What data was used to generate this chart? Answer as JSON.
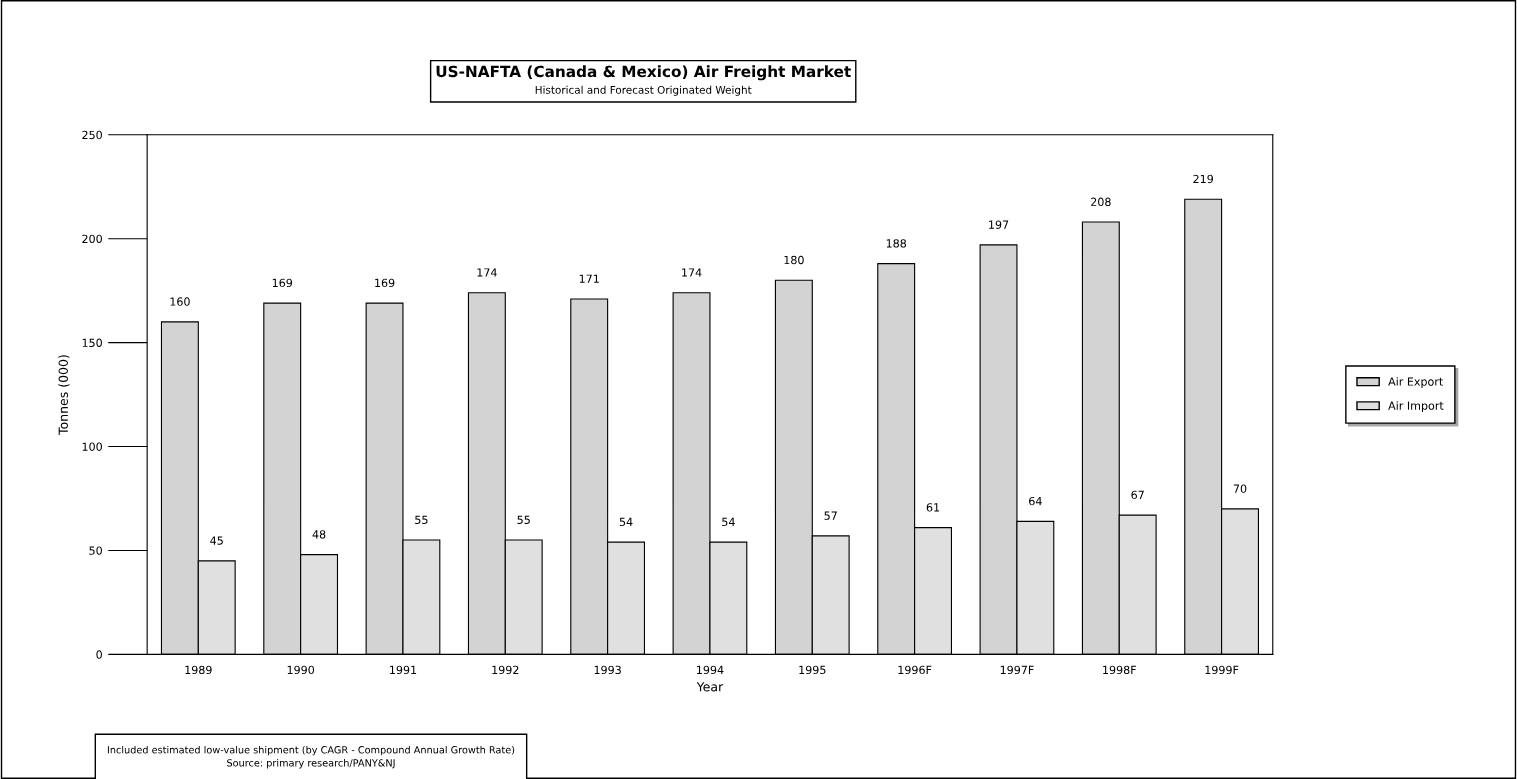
{
  "chart_data": {
    "type": "bar",
    "title": "US-NAFTA (Canada & Mexico) Air Freight Market",
    "subtitle": "Historical and Forecast Originated Weight",
    "xlabel": "Year",
    "ylabel": "Tonnes (000)",
    "categories": [
      "1989",
      "1990",
      "1991",
      "1992",
      "1993",
      "1994",
      "1995",
      "1996F",
      "1997F",
      "1998F",
      "1999F"
    ],
    "series": [
      {
        "name": "Air Export",
        "color": "#d3d3d3",
        "values": [
          160,
          169,
          169,
          174,
          171,
          174,
          180,
          188,
          197,
          208,
          219
        ]
      },
      {
        "name": "Air Import",
        "color": "#e0e0e0",
        "values": [
          45,
          48,
          55,
          55,
          54,
          54,
          57,
          61,
          64,
          67,
          70
        ]
      }
    ],
    "ylim": [
      0,
      250
    ],
    "yticks": [
      0,
      50,
      100,
      150,
      200,
      250
    ],
    "data_labels": true,
    "grid": false,
    "legend": "right",
    "annotations": [
      "Included estimated low-value shipment (by CAGR - Compound Annual Growth Rate)\nSource: primary research/PANY&NJ"
    ]
  }
}
